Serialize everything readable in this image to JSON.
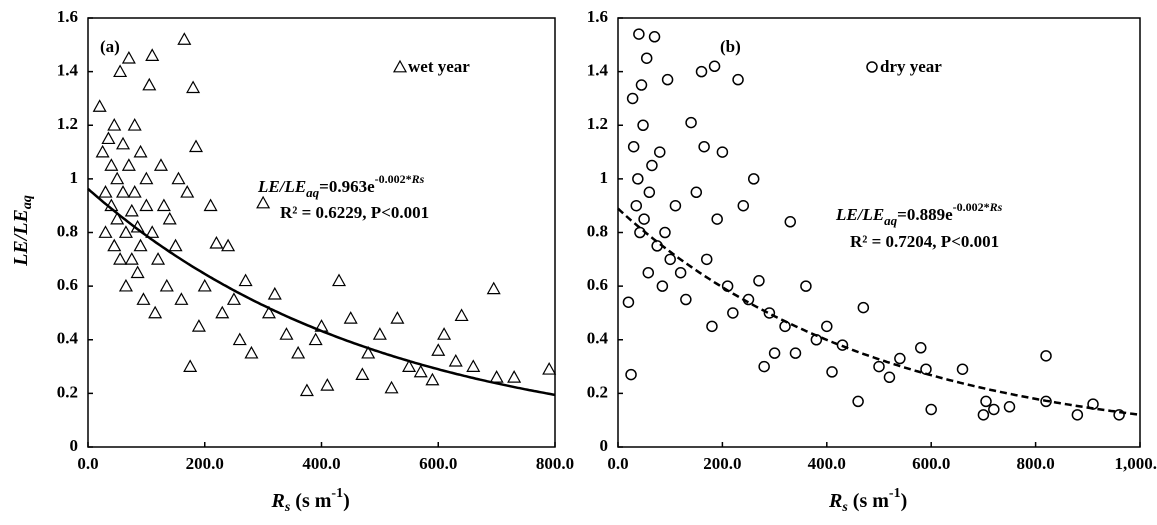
{
  "chart_data": [
    {
      "type": "scatter",
      "panel_label": "(a)",
      "ylabel": [
        "LE/LE",
        "aq"
      ],
      "xlabel": [
        "R",
        "s",
        " (s m",
        "-1",
        ")"
      ],
      "xlim": [
        0,
        800
      ],
      "xticks": [
        {
          "value": 0,
          "label": "0.0"
        },
        {
          "value": 200,
          "label": "200.0"
        },
        {
          "value": 400,
          "label": "400.0"
        },
        {
          "value": 600,
          "label": "600.0"
        },
        {
          "value": 800,
          "label": "800.0"
        }
      ],
      "ylim": [
        0,
        1.6
      ],
      "yticks": [
        0,
        0.2,
        0.4,
        0.6,
        0.8,
        1,
        1.2,
        1.4,
        1.6
      ],
      "series": [
        {
          "name": "wet year",
          "marker": "triangle",
          "color": "#000000",
          "x": [
            20,
            25,
            30,
            30,
            35,
            40,
            40,
            45,
            45,
            50,
            50,
            55,
            55,
            60,
            60,
            65,
            65,
            70,
            70,
            75,
            75,
            80,
            80,
            85,
            85,
            90,
            90,
            95,
            100,
            100,
            105,
            110,
            110,
            115,
            120,
            125,
            130,
            135,
            140,
            150,
            155,
            160,
            165,
            170,
            175,
            180,
            185,
            190,
            200,
            210,
            220,
            230,
            240,
            250,
            260,
            270,
            280,
            300,
            310,
            320,
            340,
            360,
            375,
            390,
            400,
            410,
            430,
            450,
            470,
            480,
            500,
            520,
            530,
            550,
            570,
            590,
            600,
            610,
            630,
            640,
            660,
            695,
            700,
            730,
            790
          ],
          "values": [
            1.27,
            1.1,
            0.95,
            0.8,
            1.15,
            1.05,
            0.9,
            0.75,
            1.2,
            1.0,
            0.85,
            0.7,
            1.4,
            1.13,
            0.95,
            0.8,
            0.6,
            1.45,
            1.05,
            0.88,
            0.7,
            1.2,
            0.95,
            0.82,
            0.65,
            1.1,
            0.75,
            0.55,
            0.9,
            1.0,
            1.35,
            1.46,
            0.8,
            0.5,
            0.7,
            1.05,
            0.9,
            0.6,
            0.85,
            0.75,
            1.0,
            0.55,
            1.52,
            0.95,
            0.3,
            1.34,
            1.12,
            0.45,
            0.6,
            0.9,
            0.76,
            0.5,
            0.75,
            0.55,
            0.4,
            0.62,
            0.35,
            0.91,
            0.5,
            0.57,
            0.42,
            0.35,
            0.21,
            0.4,
            0.45,
            0.23,
            0.62,
            0.48,
            0.27,
            0.35,
            0.42,
            0.22,
            0.48,
            0.3,
            0.28,
            0.25,
            0.36,
            0.42,
            0.32,
            0.49,
            0.3,
            0.59,
            0.26,
            0.26,
            0.29
          ]
        }
      ],
      "fit": {
        "a": 0.963,
        "b": -0.002,
        "style": "solid"
      },
      "equation": [
        "LE/LE",
        "aq",
        "=0.963e",
        "-0.002*",
        "Rs"
      ],
      "r2_text": "R² = 0.6229, P<0.001"
    },
    {
      "type": "scatter",
      "panel_label": "(b)",
      "xlabel": [
        "R",
        "s",
        " (s m",
        "-1",
        ")"
      ],
      "xlim": [
        0,
        1000
      ],
      "xticks": [
        {
          "value": 0,
          "label": "0.0"
        },
        {
          "value": 200,
          "label": "200.0"
        },
        {
          "value": 400,
          "label": "400.0"
        },
        {
          "value": 600,
          "label": "600.0"
        },
        {
          "value": 800,
          "label": "800.0"
        },
        {
          "value": 1000,
          "label": "1,000.0"
        }
      ],
      "ylim": [
        0,
        1.6
      ],
      "yticks": [
        0,
        0.2,
        0.4,
        0.6,
        0.8,
        1,
        1.2,
        1.4,
        1.6
      ],
      "series": [
        {
          "name": "dry year",
          "marker": "circle",
          "color": "#000000",
          "x": [
            20,
            25,
            28,
            30,
            35,
            38,
            40,
            42,
            45,
            48,
            50,
            55,
            58,
            60,
            65,
            70,
            75,
            80,
            85,
            90,
            95,
            100,
            110,
            120,
            130,
            140,
            150,
            160,
            165,
            170,
            180,
            185,
            190,
            200,
            210,
            220,
            230,
            240,
            250,
            260,
            270,
            280,
            290,
            300,
            320,
            330,
            340,
            360,
            380,
            400,
            410,
            430,
            460,
            470,
            500,
            520,
            540,
            580,
            590,
            600,
            660,
            700,
            705,
            720,
            750,
            820,
            820,
            880,
            910,
            960
          ],
          "values": [
            0.54,
            0.27,
            1.3,
            1.12,
            0.9,
            1.0,
            1.54,
            0.8,
            1.35,
            1.2,
            0.85,
            1.45,
            0.65,
            0.95,
            1.05,
            1.53,
            0.75,
            1.1,
            0.6,
            0.8,
            1.37,
            0.7,
            0.9,
            0.65,
            0.55,
            1.21,
            0.95,
            1.4,
            1.12,
            0.7,
            0.45,
            1.42,
            0.85,
            1.1,
            0.6,
            0.5,
            1.37,
            0.9,
            0.55,
            1.0,
            0.62,
            0.3,
            0.5,
            0.35,
            0.45,
            0.84,
            0.35,
            0.6,
            0.4,
            0.45,
            0.28,
            0.38,
            0.17,
            0.52,
            0.3,
            0.26,
            0.33,
            0.37,
            0.29,
            0.14,
            0.29,
            0.12,
            0.17,
            0.14,
            0.15,
            0.34,
            0.17,
            0.12,
            0.16,
            0.12
          ]
        }
      ],
      "fit": {
        "a": 0.889,
        "b": -0.002,
        "style": "dashed"
      },
      "equation": [
        "LE/LE",
        "aq",
        "=0.889e",
        "-0.002*",
        "Rs"
      ],
      "r2_text": "R² = 0.7204, P<0.001"
    }
  ]
}
